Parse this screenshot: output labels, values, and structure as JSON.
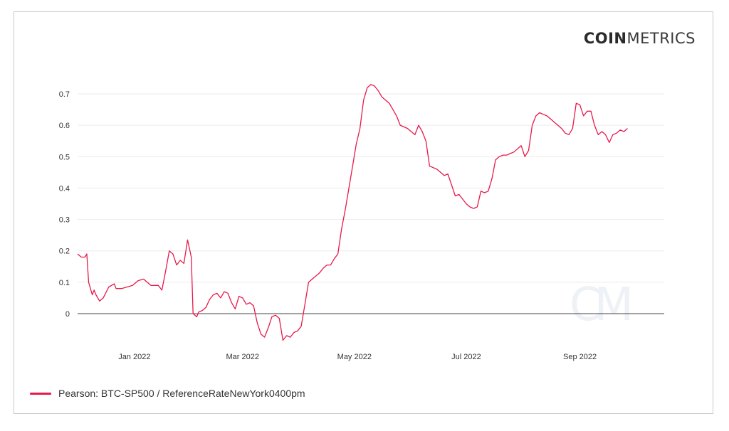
{
  "brand": {
    "part1": "COIN",
    "part2": "METRICS"
  },
  "watermark": "CM",
  "colors": {
    "series": "#e8194a",
    "grid": "#ececec",
    "zero": "#444444"
  },
  "chart_data": {
    "type": "line",
    "title": "",
    "xlabel": "",
    "ylabel": "",
    "ylim": [
      -0.1,
      0.75
    ],
    "xlim": [
      "2021-12-01",
      "2022-10-17"
    ],
    "y_ticks": [
      0,
      0.1,
      0.2,
      0.3,
      0.4,
      0.5,
      0.6,
      0.7
    ],
    "y_tick_labels": [
      "0",
      "0.1",
      "0.2",
      "0.3",
      "0.4",
      "0.5",
      "0.6",
      "0.7"
    ],
    "x_ticks": [
      "2022-01-01",
      "2022-03-01",
      "2022-05-01",
      "2022-07-01",
      "2022-09-01"
    ],
    "x_tick_labels": [
      "Jan 2022",
      "Mar 2022",
      "May 2022",
      "Jul 2022",
      "Sep 2022"
    ],
    "grid": true,
    "legend_position": "bottom-left",
    "series": [
      {
        "name": "Pearson: BTC-SP500 / ReferenceRateNewYork0400pm",
        "points": [
          [
            "2021-12-01",
            0.19
          ],
          [
            "2021-12-03",
            0.18
          ],
          [
            "2021-12-05",
            0.18
          ],
          [
            "2021-12-06",
            0.19
          ],
          [
            "2021-12-07",
            0.1
          ],
          [
            "2021-12-09",
            0.06
          ],
          [
            "2021-12-10",
            0.075
          ],
          [
            "2021-12-11",
            0.06
          ],
          [
            "2021-12-13",
            0.04
          ],
          [
            "2021-12-15",
            0.05
          ],
          [
            "2021-12-18",
            0.085
          ],
          [
            "2021-12-21",
            0.095
          ],
          [
            "2021-12-22",
            0.08
          ],
          [
            "2021-12-25",
            0.08
          ],
          [
            "2021-12-28",
            0.085
          ],
          [
            "2021-12-31",
            0.09
          ],
          [
            "2022-01-03",
            0.105
          ],
          [
            "2022-01-06",
            0.11
          ],
          [
            "2022-01-08",
            0.1
          ],
          [
            "2022-01-10",
            0.09
          ],
          [
            "2022-01-14",
            0.09
          ],
          [
            "2022-01-16",
            0.075
          ],
          [
            "2022-01-18",
            0.135
          ],
          [
            "2022-01-20",
            0.2
          ],
          [
            "2022-01-22",
            0.19
          ],
          [
            "2022-01-24",
            0.155
          ],
          [
            "2022-01-26",
            0.17
          ],
          [
            "2022-01-28",
            0.16
          ],
          [
            "2022-01-30",
            0.235
          ],
          [
            "2022-02-01",
            0.18
          ],
          [
            "2022-02-02",
            0.0
          ],
          [
            "2022-02-04",
            -0.01
          ],
          [
            "2022-02-05",
            0.005
          ],
          [
            "2022-02-07",
            0.01
          ],
          [
            "2022-02-09",
            0.02
          ],
          [
            "2022-02-11",
            0.045
          ],
          [
            "2022-02-13",
            0.06
          ],
          [
            "2022-02-15",
            0.065
          ],
          [
            "2022-02-17",
            0.05
          ],
          [
            "2022-02-19",
            0.07
          ],
          [
            "2022-02-21",
            0.065
          ],
          [
            "2022-02-23",
            0.035
          ],
          [
            "2022-02-25",
            0.015
          ],
          [
            "2022-02-27",
            0.055
          ],
          [
            "2022-03-01",
            0.05
          ],
          [
            "2022-03-03",
            0.03
          ],
          [
            "2022-03-05",
            0.035
          ],
          [
            "2022-03-07",
            0.025
          ],
          [
            "2022-03-09",
            -0.03
          ],
          [
            "2022-03-11",
            -0.065
          ],
          [
            "2022-03-13",
            -0.075
          ],
          [
            "2022-03-15",
            -0.045
          ],
          [
            "2022-03-17",
            -0.01
          ],
          [
            "2022-03-19",
            -0.005
          ],
          [
            "2022-03-21",
            -0.015
          ],
          [
            "2022-03-23",
            -0.085
          ],
          [
            "2022-03-25",
            -0.07
          ],
          [
            "2022-03-27",
            -0.075
          ],
          [
            "2022-03-29",
            -0.06
          ],
          [
            "2022-03-31",
            -0.055
          ],
          [
            "2022-04-02",
            -0.04
          ],
          [
            "2022-04-04",
            0.03
          ],
          [
            "2022-04-06",
            0.1
          ],
          [
            "2022-04-08",
            0.11
          ],
          [
            "2022-04-10",
            0.12
          ],
          [
            "2022-04-12",
            0.13
          ],
          [
            "2022-04-14",
            0.145
          ],
          [
            "2022-04-16",
            0.155
          ],
          [
            "2022-04-18",
            0.155
          ],
          [
            "2022-04-20",
            0.175
          ],
          [
            "2022-04-22",
            0.19
          ],
          [
            "2022-04-24",
            0.27
          ],
          [
            "2022-04-26",
            0.33
          ],
          [
            "2022-04-28",
            0.4
          ],
          [
            "2022-04-30",
            0.47
          ],
          [
            "2022-05-02",
            0.54
          ],
          [
            "2022-05-04",
            0.59
          ],
          [
            "2022-05-06",
            0.68
          ],
          [
            "2022-05-08",
            0.72
          ],
          [
            "2022-05-10",
            0.73
          ],
          [
            "2022-05-12",
            0.725
          ],
          [
            "2022-05-14",
            0.71
          ],
          [
            "2022-05-16",
            0.69
          ],
          [
            "2022-05-18",
            0.68
          ],
          [
            "2022-05-20",
            0.67
          ],
          [
            "2022-05-22",
            0.65
          ],
          [
            "2022-05-24",
            0.63
          ],
          [
            "2022-05-26",
            0.6
          ],
          [
            "2022-05-28",
            0.595
          ],
          [
            "2022-05-30",
            0.59
          ],
          [
            "2022-06-01",
            0.58
          ],
          [
            "2022-06-03",
            0.57
          ],
          [
            "2022-06-05",
            0.6
          ],
          [
            "2022-06-07",
            0.58
          ],
          [
            "2022-06-09",
            0.55
          ],
          [
            "2022-06-11",
            0.47
          ],
          [
            "2022-06-13",
            0.465
          ],
          [
            "2022-06-15",
            0.46
          ],
          [
            "2022-06-17",
            0.45
          ],
          [
            "2022-06-19",
            0.44
          ],
          [
            "2022-06-21",
            0.445
          ],
          [
            "2022-06-23",
            0.41
          ],
          [
            "2022-06-25",
            0.375
          ],
          [
            "2022-06-27",
            0.38
          ],
          [
            "2022-06-29",
            0.365
          ],
          [
            "2022-07-01",
            0.35
          ],
          [
            "2022-07-03",
            0.34
          ],
          [
            "2022-07-05",
            0.335
          ],
          [
            "2022-07-07",
            0.34
          ],
          [
            "2022-07-09",
            0.39
          ],
          [
            "2022-07-11",
            0.385
          ],
          [
            "2022-07-13",
            0.39
          ],
          [
            "2022-07-15",
            0.43
          ],
          [
            "2022-07-17",
            0.49
          ],
          [
            "2022-07-19",
            0.5
          ],
          [
            "2022-07-21",
            0.505
          ],
          [
            "2022-07-23",
            0.505
          ],
          [
            "2022-07-25",
            0.51
          ],
          [
            "2022-07-27",
            0.515
          ],
          [
            "2022-07-29",
            0.525
          ],
          [
            "2022-07-31",
            0.535
          ],
          [
            "2022-08-02",
            0.5
          ],
          [
            "2022-08-04",
            0.52
          ],
          [
            "2022-08-06",
            0.6
          ],
          [
            "2022-08-08",
            0.63
          ],
          [
            "2022-08-10",
            0.64
          ],
          [
            "2022-08-12",
            0.635
          ],
          [
            "2022-08-14",
            0.63
          ],
          [
            "2022-08-16",
            0.62
          ],
          [
            "2022-08-18",
            0.61
          ],
          [
            "2022-08-20",
            0.6
          ],
          [
            "2022-08-22",
            0.59
          ],
          [
            "2022-08-24",
            0.575
          ],
          [
            "2022-08-26",
            0.57
          ],
          [
            "2022-08-28",
            0.59
          ],
          [
            "2022-08-30",
            0.67
          ],
          [
            "2022-09-01",
            0.665
          ],
          [
            "2022-09-03",
            0.63
          ],
          [
            "2022-09-05",
            0.645
          ],
          [
            "2022-09-07",
            0.645
          ],
          [
            "2022-09-09",
            0.6
          ],
          [
            "2022-09-11",
            0.57
          ],
          [
            "2022-09-13",
            0.58
          ],
          [
            "2022-09-15",
            0.57
          ],
          [
            "2022-09-17",
            0.545
          ],
          [
            "2022-09-19",
            0.57
          ],
          [
            "2022-09-21",
            0.575
          ],
          [
            "2022-09-23",
            0.585
          ],
          [
            "2022-09-25",
            0.58
          ],
          [
            "2022-09-27",
            0.59
          ]
        ]
      }
    ]
  }
}
